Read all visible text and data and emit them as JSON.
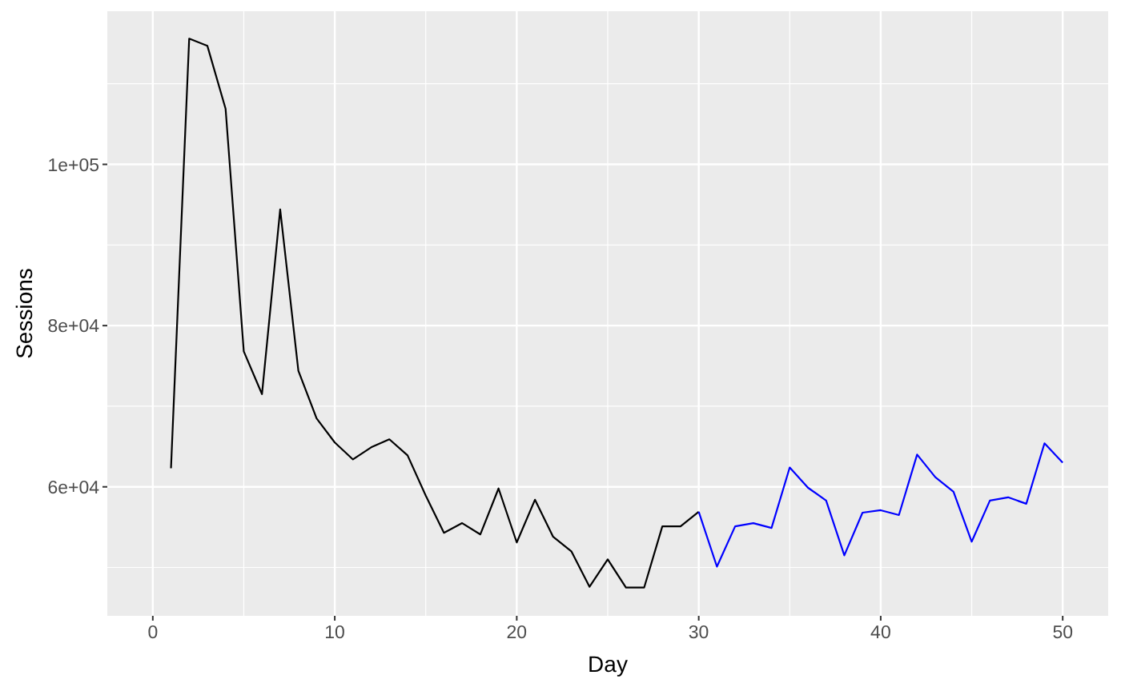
{
  "chart_data": {
    "type": "line",
    "xlabel": "Day",
    "ylabel": "Sessions",
    "series": [
      {
        "color": "#000000",
        "x": [
          1,
          2,
          3,
          4,
          5,
          6,
          7,
          8,
          9,
          10,
          11,
          12,
          13,
          14,
          15,
          16,
          17,
          18,
          19,
          20,
          21,
          22,
          23,
          24,
          25,
          26,
          27,
          28,
          29,
          30
        ],
        "values": [
          62300,
          115600,
          114700,
          106900,
          76800,
          71500,
          94400,
          74400,
          68500,
          65500,
          63400,
          64900,
          65900,
          63900,
          58900,
          54300,
          55500,
          54100,
          59800,
          53100,
          58400,
          53800,
          52000,
          47600,
          51000,
          47500,
          47500,
          55100,
          55100,
          56900
        ]
      },
      {
        "color": "#0000ff",
        "x": [
          30,
          31,
          32,
          33,
          34,
          35,
          36,
          37,
          38,
          39,
          40,
          41,
          42,
          43,
          44,
          45,
          46,
          47,
          48,
          49,
          50
        ],
        "values": [
          56900,
          50100,
          55100,
          55500,
          54900,
          62400,
          59900,
          58300,
          51500,
          56800,
          57100,
          56500,
          64000,
          61200,
          59400,
          53200,
          58300,
          58700,
          57900,
          65400,
          63000
        ]
      }
    ],
    "xlim": [
      -2.5,
      52.5
    ],
    "xticks": [
      0,
      10,
      20,
      30,
      40,
      50
    ],
    "ylim": [
      44000,
      119000
    ],
    "yticks": [
      {
        "value": 60000,
        "label": "6e+04"
      },
      {
        "value": 80000,
        "label": "8e+04"
      },
      {
        "value": 100000,
        "label": "1e+05"
      }
    ],
    "grid": true,
    "marker": "none",
    "line_style": "solid"
  }
}
